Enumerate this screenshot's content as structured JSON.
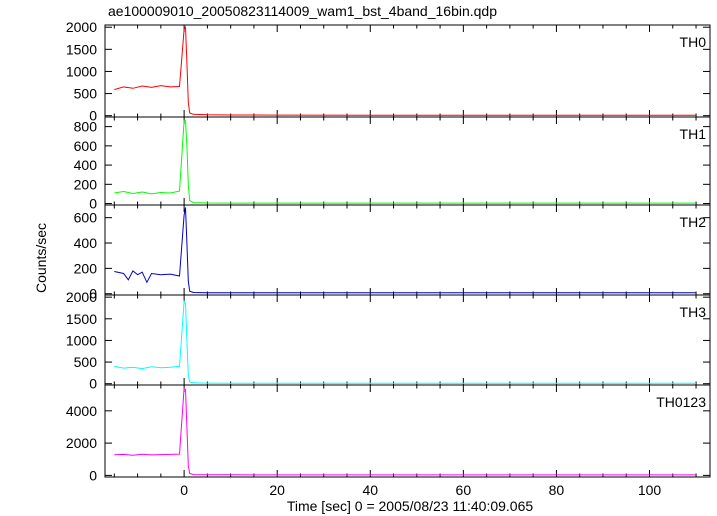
{
  "title": "ae100009010_20050823114009_wam1_bst_4band_16bin.qdp",
  "chart_data": {
    "type": "line",
    "title": "ae100009010_20050823114009_wam1_bst_4band_16bin.qdp",
    "xlabel": "Time [sec] 0 = 2005/08/23 11:40:09.065",
    "ylabel": "Counts/sec",
    "xlim": [
      -17,
      113
    ],
    "xticks": [
      0,
      20,
      40,
      60,
      80,
      100
    ],
    "grid": false,
    "panels": [
      {
        "name": "TH0",
        "color": "#ff0000",
        "ylim": [
          -30,
          2050
        ],
        "yticks": [
          0,
          500,
          1000,
          1500,
          2000
        ],
        "series": [
          {
            "x": [
              -15,
              -13,
              -11,
              -9,
              -7,
              -5,
              -3,
              -1,
              0,
              0.3,
              0.6,
              0.9,
              1.2,
              2,
              5,
              10,
              20,
              40,
              60,
              80,
              100,
              110
            ],
            "y": [
              590,
              650,
              620,
              670,
              640,
              680,
              650,
              660,
              1950,
              2000,
              1200,
              300,
              60,
              30,
              20,
              15,
              12,
              10,
              10,
              10,
              10,
              10
            ]
          }
        ]
      },
      {
        "name": "TH1",
        "color": "#00ff00",
        "ylim": [
          -15,
          900
        ],
        "yticks": [
          0,
          200,
          400,
          600,
          800
        ],
        "series": [
          {
            "x": [
              -15,
              -13,
              -11,
              -9,
              -7,
              -5,
              -3,
              -1,
              0,
              0.3,
              0.6,
              0.9,
              1.2,
              2,
              5,
              10,
              20,
              40,
              60,
              80,
              100,
              110
            ],
            "y": [
              110,
              125,
              105,
              120,
              100,
              115,
              110,
              130,
              860,
              860,
              600,
              200,
              30,
              10,
              6,
              5,
              5,
              5,
              5,
              5,
              5,
              5
            ]
          }
        ]
      },
      {
        "name": "TH2",
        "color": "#0000cc",
        "ylim": [
          -10,
          700
        ],
        "yticks": [
          0,
          200,
          400,
          600
        ],
        "series": [
          {
            "x": [
              -15,
              -13,
              -12,
              -11,
              -10,
              -9,
              -8,
              -7,
              -5,
              -3,
              -1,
              0,
              0.3,
              0.6,
              0.9,
              1.2,
              2,
              5,
              10,
              20,
              40,
              60,
              80,
              100,
              110
            ],
            "y": [
              175,
              160,
              110,
              180,
              150,
              170,
              90,
              160,
              150,
              155,
              140,
              620,
              680,
              400,
              100,
              20,
              10,
              8,
              8,
              8,
              8,
              8,
              8,
              8,
              8
            ]
          }
        ]
      },
      {
        "name": "TH3",
        "color": "#00ffff",
        "ylim": [
          -30,
          2050
        ],
        "yticks": [
          0,
          500,
          1000,
          1500,
          2000
        ],
        "series": [
          {
            "x": [
              -15,
              -13,
              -11,
              -9,
              -7,
              -5,
              -3,
              -1,
              0,
              0.3,
              0.6,
              0.9,
              1.2,
              2,
              5,
              10,
              20,
              40,
              60,
              80,
              100,
              110
            ],
            "y": [
              400,
              360,
              380,
              350,
              390,
              370,
              380,
              400,
              1900,
              1850,
              1000,
              200,
              40,
              20,
              15,
              12,
              10,
              10,
              10,
              10,
              10,
              10
            ]
          }
        ]
      },
      {
        "name": "TH0123",
        "color": "#ff00ff",
        "ylim": [
          -100,
          5600
        ],
        "yticks": [
          0,
          2000,
          4000
        ],
        "series": [
          {
            "x": [
              -15,
              -13,
              -11,
              -9,
              -7,
              -5,
              -3,
              -1,
              0,
              0.3,
              0.6,
              0.9,
              1.2,
              2,
              5,
              10,
              20,
              40,
              60,
              80,
              100,
              110
            ],
            "y": [
              1280,
              1300,
              1250,
              1310,
              1270,
              1290,
              1300,
              1320,
              5400,
              5300,
              3000,
              600,
              120,
              50,
              40,
              35,
              30,
              30,
              30,
              30,
              30,
              30
            ]
          }
        ]
      }
    ]
  }
}
